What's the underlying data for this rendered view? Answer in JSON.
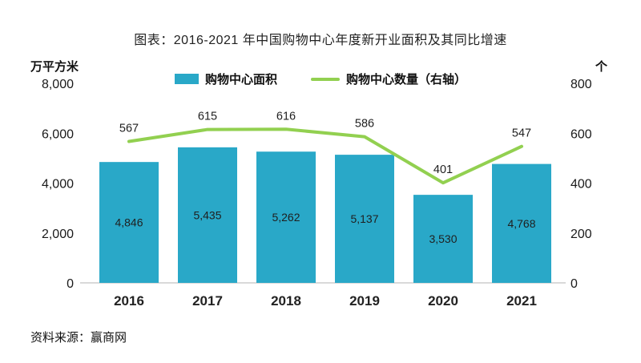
{
  "title": "图表：2016-2021 年中国购物中心年度新开业面积及其同比增速",
  "source": "资料来源：赢商网",
  "left_axis": {
    "unit": "万平方米",
    "ticks": [
      "8,000",
      "6,000",
      "4,000",
      "2,000",
      "0"
    ]
  },
  "right_axis": {
    "unit": "个",
    "ticks": [
      "800",
      "600",
      "400",
      "200",
      "0"
    ]
  },
  "legend": [
    {
      "label": "购物中心面积",
      "type": "bar",
      "color": "#29A8C8"
    },
    {
      "label": "购物中心数量（右轴）",
      "type": "line",
      "color": "#92D050"
    }
  ],
  "chart_data": {
    "type": "bar+line",
    "categories": [
      "2016",
      "2017",
      "2018",
      "2019",
      "2020",
      "2021"
    ],
    "series": [
      {
        "name": "购物中心面积",
        "type": "bar",
        "axis": "left",
        "color": "#29A8C8",
        "values": [
          4846,
          5435,
          5262,
          5137,
          3530,
          4768
        ],
        "labels": [
          "4,846",
          "5,435",
          "5,262",
          "5,137",
          "3,530",
          "4,768"
        ]
      },
      {
        "name": "购物中心数量（右轴）",
        "type": "line",
        "axis": "right",
        "color": "#92D050",
        "values": [
          567,
          615,
          616,
          586,
          401,
          547
        ],
        "labels": [
          "567",
          "615",
          "616",
          "586",
          "401",
          "547"
        ]
      }
    ],
    "title": "图表：2016-2021 年中国购物中心年度新开业面积及其同比增速",
    "left_ylabel": "万平方米",
    "right_ylabel": "个",
    "left_ylim": [
      0,
      8000
    ],
    "right_ylim": [
      0,
      800
    ],
    "grid": false,
    "legend_position": "top",
    "bar_value_label_position": "inside-center",
    "line_value_label_position": "above"
  }
}
